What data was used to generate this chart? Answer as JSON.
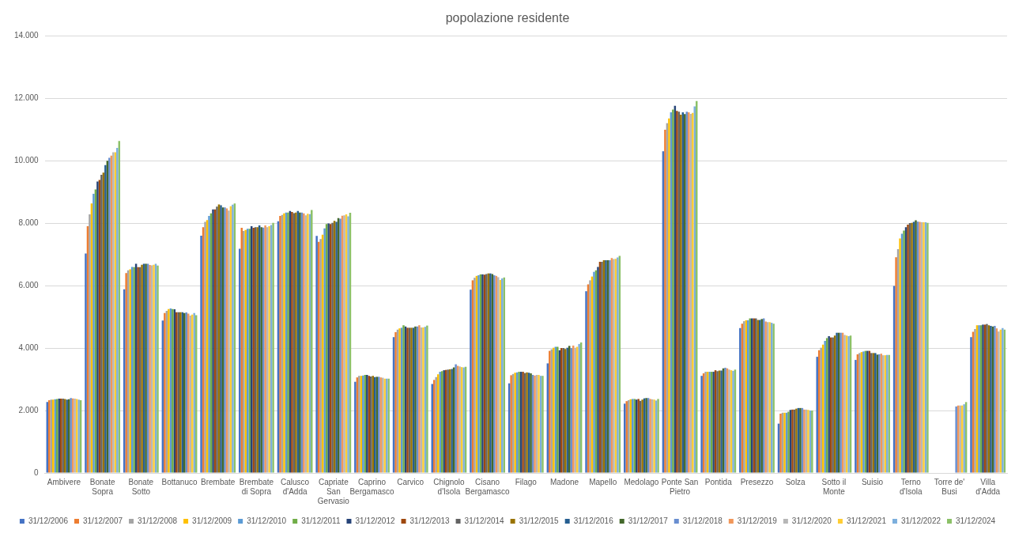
{
  "chart_data": {
    "type": "bar",
    "title": "popolazione residente",
    "categories": [
      "Ambivere",
      "Bonate Sopra",
      "Bonate Sotto",
      "Bottanuco",
      "Brembate",
      "Brembate di Sopra",
      "Calusco d'Adda",
      "Capriate San Gervasio",
      "Caprino Bergamasco",
      "Carvico",
      "Chignolo d'Isola",
      "Cisano Bergamasco",
      "Filago",
      "Madone",
      "Mapello",
      "Medolago",
      "Ponte San Pietro",
      "Pontida",
      "Presezzo",
      "Solza",
      "Sotto il Monte",
      "Suisio",
      "Terno d'Isola",
      "Torre de' Busi",
      "Villa d'Adda"
    ],
    "ylim": [
      0,
      14000
    ],
    "yticks": [
      0,
      {
        "value": 2000,
        "label": "2.000"
      },
      {
        "value": 4000,
        "label": "4.000"
      },
      {
        "value": 6000,
        "label": "6.000"
      },
      {
        "value": 8000,
        "label": "8.000"
      },
      {
        "value": 10000,
        "label": "10.000"
      },
      {
        "value": 12000,
        "label": "12.000"
      },
      {
        "value": 14000,
        "label": "14.000"
      }
    ],
    "grid": "y",
    "legend": "bottom",
    "series": [
      {
        "name": "31/12/2006",
        "color": "#4472c4",
        "values": [
          2270,
          7030,
          5880,
          4880,
          7600,
          7180,
          8060,
          7590,
          2920,
          4350,
          2850,
          5870,
          2870,
          3510,
          5820,
          2220,
          10300,
          3110,
          4640,
          1580,
          3720,
          3620,
          5990,
          null,
          4350
        ]
      },
      {
        "name": "31/12/2007",
        "color": "#ed7d31",
        "values": [
          2330,
          7900,
          6400,
          5120,
          7870,
          7850,
          8230,
          7400,
          3060,
          4510,
          2980,
          6170,
          3130,
          3910,
          6040,
          2300,
          10990,
          3190,
          4780,
          1900,
          3930,
          3800,
          6910,
          null,
          4520
        ]
      },
      {
        "name": "31/12/2008",
        "color": "#a5a5a5",
        "values": [
          2350,
          8280,
          6490,
          5190,
          8040,
          7750,
          8260,
          7490,
          3110,
          4590,
          3070,
          6250,
          3170,
          3960,
          6170,
          2330,
          11200,
          3240,
          4860,
          1930,
          4010,
          3840,
          7170,
          null,
          4610
        ]
      },
      {
        "name": "31/12/2009",
        "color": "#ffc000",
        "values": [
          2350,
          8630,
          6520,
          5250,
          8100,
          7780,
          8310,
          7630,
          3110,
          4630,
          3160,
          6310,
          3210,
          4010,
          6290,
          2360,
          11350,
          3240,
          4890,
          1930,
          4110,
          3870,
          7510,
          null,
          4730
        ]
      },
      {
        "name": "31/12/2010",
        "color": "#5b9bd5",
        "values": [
          2360,
          8940,
          6600,
          5270,
          8230,
          7820,
          8340,
          7830,
          3120,
          4650,
          3240,
          6330,
          3220,
          4040,
          6440,
          2370,
          11550,
          3240,
          4890,
          1930,
          4230,
          3890,
          7660,
          null,
          4730
        ]
      },
      {
        "name": "31/12/2011",
        "color": "#70ad47",
        "values": [
          2370,
          9080,
          6590,
          5250,
          8310,
          7820,
          8340,
          7970,
          3140,
          4730,
          3260,
          6360,
          3240,
          4040,
          6490,
          2370,
          11640,
          3240,
          4950,
          1960,
          4320,
          3910,
          7760,
          null,
          4730
        ]
      },
      {
        "name": "31/12/2012",
        "color": "#264478",
        "values": [
          2380,
          9330,
          6700,
          5240,
          8440,
          7900,
          8390,
          7990,
          3140,
          4690,
          3290,
          6360,
          3240,
          3930,
          6600,
          2350,
          11760,
          3240,
          4950,
          2020,
          4380,
          3910,
          7870,
          null,
          4750
        ]
      },
      {
        "name": "31/12/2013",
        "color": "#9e480e",
        "values": [
          2380,
          9380,
          6590,
          5150,
          8440,
          7850,
          8360,
          7970,
          3110,
          4650,
          3300,
          6350,
          3240,
          4000,
          6760,
          2370,
          11590,
          3290,
          4950,
          2030,
          4340,
          3910,
          7950,
          null,
          4750
        ]
      },
      {
        "name": "31/12/2014",
        "color": "#636363",
        "values": [
          2380,
          9550,
          6590,
          5150,
          8530,
          7870,
          8320,
          8010,
          3090,
          4650,
          3310,
          6370,
          3200,
          4000,
          6760,
          2310,
          11570,
          3260,
          4950,
          2030,
          4340,
          3840,
          8000,
          null,
          4770
        ]
      },
      {
        "name": "31/12/2015",
        "color": "#997300",
        "values": [
          2370,
          9620,
          6670,
          5150,
          8600,
          7870,
          8340,
          8070,
          3110,
          4650,
          3320,
          6390,
          3220,
          3970,
          6810,
          2350,
          11470,
          3280,
          4900,
          2060,
          4400,
          3840,
          8010,
          null,
          4730
        ]
      },
      {
        "name": "31/12/2016",
        "color": "#255e91",
        "values": [
          2350,
          9860,
          6700,
          5150,
          8570,
          7930,
          8390,
          8040,
          3070,
          4650,
          3330,
          6390,
          3210,
          4010,
          6810,
          2390,
          11550,
          3280,
          4900,
          2080,
          4490,
          3840,
          8040,
          null,
          4710
        ]
      },
      {
        "name": "31/12/2017",
        "color": "#43682b",
        "values": [
          2360,
          10000,
          6700,
          5120,
          8500,
          7870,
          8340,
          8160,
          3080,
          4690,
          3380,
          6370,
          3190,
          4070,
          6810,
          2400,
          11490,
          3350,
          4930,
          2080,
          4490,
          3790,
          8090,
          null,
          4690
        ]
      },
      {
        "name": "31/12/2018",
        "color": "#698ed0",
        "values": [
          2400,
          10090,
          6700,
          5140,
          8500,
          7860,
          8340,
          8140,
          3080,
          4690,
          3480,
          6330,
          3140,
          4000,
          6810,
          2400,
          11570,
          3370,
          4950,
          2080,
          4490,
          3800,
          8050,
          2130,
          4710
        ]
      },
      {
        "name": "31/12/2019",
        "color": "#f1975a",
        "values": [
          2390,
          10160,
          6660,
          5100,
          8470,
          7930,
          8310,
          8240,
          3060,
          4730,
          3430,
          6310,
          3120,
          4080,
          6880,
          2370,
          11550,
          3350,
          4850,
          2030,
          4490,
          3820,
          8040,
          2160,
          4630
        ]
      },
      {
        "name": "31/12/2020",
        "color": "#b7b7b7",
        "values": [
          2380,
          10270,
          6650,
          5040,
          8400,
          7870,
          8250,
          8250,
          3050,
          4660,
          3410,
          6270,
          3140,
          4010,
          6850,
          2360,
          11500,
          3310,
          4830,
          2030,
          4420,
          3770,
          8030,
          2160,
          4530
        ]
      },
      {
        "name": "31/12/2021",
        "color": "#ffcd33",
        "values": [
          2370,
          10270,
          6670,
          5070,
          8540,
          7900,
          8300,
          8280,
          3020,
          4660,
          3390,
          6180,
          3140,
          4040,
          6860,
          2350,
          11530,
          3290,
          4830,
          2020,
          4400,
          3770,
          8030,
          2160,
          4590
        ]
      },
      {
        "name": "31/12/2022",
        "color": "#7cafdd",
        "values": [
          2350,
          10410,
          6700,
          5120,
          8590,
          7940,
          8290,
          8220,
          3020,
          4680,
          3380,
          6230,
          3110,
          4130,
          6900,
          2320,
          11740,
          3270,
          4810,
          2000,
          4380,
          3780,
          8030,
          2200,
          4640
        ]
      },
      {
        "name": "31/12/2024",
        "color": "#8cc168",
        "values": [
          2330,
          10630,
          6640,
          5050,
          8630,
          8010,
          8420,
          8330,
          3020,
          4720,
          3400,
          6260,
          3110,
          4180,
          6950,
          2370,
          11910,
          3310,
          4780,
          2000,
          4400,
          3780,
          8010,
          2270,
          4590
        ]
      }
    ]
  }
}
